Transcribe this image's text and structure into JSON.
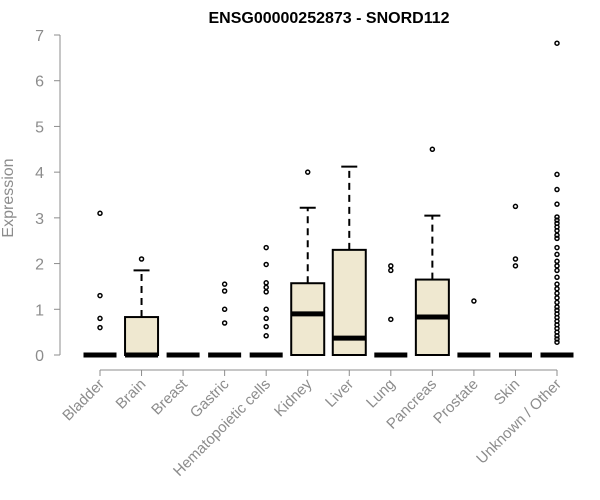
{
  "chart_data": {
    "type": "boxplot",
    "title": "ENSG00000252873 - SNORD112",
    "xlabel": "",
    "ylabel": "Expression",
    "ylim": [
      0,
      7
    ],
    "yticks": [
      0,
      1,
      2,
      3,
      4,
      5,
      6,
      7
    ],
    "grid": false,
    "box_fill": "#efe8d0",
    "categories": [
      "Bladder",
      "Brain",
      "Breast",
      "Gastric",
      "Hematopoietic cells",
      "Kidney",
      "Liver",
      "Lung",
      "Pancreas",
      "Prostate",
      "Skin",
      "Unknown / Other"
    ],
    "boxes": [
      {
        "q1": 0,
        "median": 0,
        "q3": 0,
        "whisker_low": 0,
        "whisker_high": 0,
        "outliers": [
          3.1,
          1.3,
          0.8,
          0.6
        ]
      },
      {
        "q1": 0,
        "median": 0,
        "q3": 0.83,
        "whisker_low": 0,
        "whisker_high": 1.85,
        "outliers": [
          2.1
        ]
      },
      {
        "q1": 0,
        "median": 0,
        "q3": 0,
        "whisker_low": 0,
        "whisker_high": 0,
        "outliers": []
      },
      {
        "q1": 0,
        "median": 0,
        "q3": 0,
        "whisker_low": 0,
        "whisker_high": 0,
        "outliers": [
          1.55,
          1.4,
          1.0,
          0.7
        ]
      },
      {
        "q1": 0,
        "median": 0,
        "q3": 0,
        "whisker_low": 0,
        "whisker_high": 0,
        "outliers": [
          2.35,
          1.98,
          1.58,
          1.48,
          1.38,
          1.0,
          0.8,
          0.62,
          0.42
        ]
      },
      {
        "q1": 0,
        "median": 0.9,
        "q3": 1.57,
        "whisker_low": 0,
        "whisker_high": 3.22,
        "outliers": [
          4.0
        ]
      },
      {
        "q1": 0,
        "median": 0.37,
        "q3": 2.3,
        "whisker_low": 0,
        "whisker_high": 4.12,
        "outliers": []
      },
      {
        "q1": 0,
        "median": 0,
        "q3": 0,
        "whisker_low": 0,
        "whisker_high": 0,
        "outliers": [
          1.95,
          1.85,
          0.78
        ]
      },
      {
        "q1": 0,
        "median": 0.83,
        "q3": 1.65,
        "whisker_low": 0,
        "whisker_high": 3.05,
        "outliers": [
          4.5
        ]
      },
      {
        "q1": 0,
        "median": 0,
        "q3": 0,
        "whisker_low": 0,
        "whisker_high": 0,
        "outliers": [
          1.18
        ]
      },
      {
        "q1": 0,
        "median": 0,
        "q3": 0,
        "whisker_low": 0,
        "whisker_high": 0,
        "outliers": [
          3.25,
          2.1,
          1.95
        ]
      },
      {
        "q1": 0,
        "median": 0,
        "q3": 0,
        "whisker_low": 0,
        "whisker_high": 0,
        "outliers": [
          6.82,
          3.95,
          3.62,
          3.3,
          3.02,
          2.95,
          2.88,
          2.8,
          2.72,
          2.62,
          2.55,
          2.35,
          2.2,
          2.05,
          1.95,
          1.85,
          1.7,
          1.55,
          1.45,
          1.35,
          1.25,
          1.15,
          1.05,
          0.98,
          0.9,
          0.82,
          0.74,
          0.66,
          0.58,
          0.5,
          0.42,
          0.35,
          0.28
        ]
      }
    ]
  }
}
